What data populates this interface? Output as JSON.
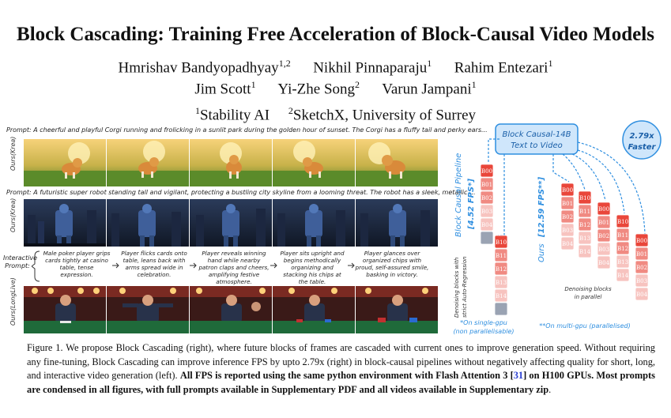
{
  "title": "Block Cascading: Training Free Acceleration of Block-Causal Video Models",
  "authors_line1": [
    {
      "name": "Hmrishav Bandyopadhyay",
      "aff": "1,2"
    },
    {
      "name": "Nikhil Pinnaparaju",
      "aff": "1"
    },
    {
      "name": "Rahim Entezari",
      "aff": "1"
    }
  ],
  "authors_line2": [
    {
      "name": "Jim Scott",
      "aff": "1"
    },
    {
      "name": "Yi-Zhe Song",
      "aff": "2"
    },
    {
      "name": "Varun Jampani",
      "aff": "1"
    }
  ],
  "affiliations": [
    {
      "num": "1",
      "name": "Stability AI"
    },
    {
      "num": "2",
      "name": "SketchX, University of Surrey"
    }
  ],
  "figure": {
    "prompt1": "Prompt: A cheerful and playful Corgi running and frolicking in a sunlit park during the golden hour of sunset. The Corgi has a fluffy tail and perky ears...",
    "row1_label": "Ours(Krea)",
    "prompt2": "Prompt: A futuristic super robot standing tall and vigilant, protecting a bustling city skyline from a looming threat. The robot has a sleek, metallic ...",
    "row2_label": "Ours(Krea)",
    "interactive_label": "Interactive Prompt:",
    "interactive_prompts": [
      "Male poker player grips cards tightly at casino table, tense expression.",
      "Player flicks cards onto table, leans back with arms spread wide in celebration.",
      "Player reveals winning hand while nearby patron claps and cheers, amplifying festive atmosphere.",
      "Player sits upright and begins methodically organizing and stacking his chips at the table.",
      "Player glances over organized chips with proud, self-assured smile, basking in victory."
    ],
    "row3_label": "Ours(LongLive)",
    "model_box": [
      "Block Causal-14B",
      "Text to Video"
    ],
    "speedup": [
      "2.79x",
      "Faster"
    ],
    "pipeline_label": "Block Causal Pipeline",
    "pipeline_fps": "[4.52 FPS*]",
    "pipeline_desc": [
      "Denoising blocks with",
      "strict Auto-Regression"
    ],
    "ours_label": "Ours",
    "ours_fps": "[12.59 FPS**]",
    "ours_desc": [
      "Denoising blocks",
      "in parallel"
    ],
    "note_single": [
      "*On single-gpu",
      "(non parallelisable)"
    ],
    "note_multi": "**On multi-gpu (parallelised)",
    "block_labels": {
      "b0": [
        "B",
        "0",
        "0"
      ],
      "b1": [
        "B",
        "1",
        "0"
      ],
      "b2": [
        "B",
        "2",
        "0"
      ],
      "b3": [
        "B",
        "3",
        "0"
      ],
      "b4": [
        "B",
        "4",
        "0"
      ],
      "c0": [
        "B",
        "0",
        "1"
      ],
      "c1": [
        "B",
        "1",
        "1"
      ],
      "c2": [
        "B",
        "2",
        "1"
      ],
      "c3": [
        "B",
        "3",
        "1"
      ],
      "c4": [
        "B",
        "4",
        "1"
      ]
    },
    "colors": {
      "block_dark": "#e9463a",
      "block_mid": "#f08a82",
      "block_light": "#f7c3bf",
      "block_gray": "#9aa3b3",
      "accent_blue": "#2f8fe0",
      "box_fill": "#cfe6fb"
    }
  },
  "caption": {
    "lead": "Figure 1.",
    "normal": " We propose Block Cascading (right), where future blocks of frames are cascaded with current ones to improve generation speed. Without requiring any fine-tuning, Block Cascading can improve inference FPS by upto 2.79x (right) in block-causal pipelines without negatively affecting quality for short, long, and interactive video generation (left). ",
    "bold_a": "All FPS is reported using the same python environment with Flash Attention 3 [",
    "ref": "31",
    "bold_b": "] on H100 GPUs. Most prompts are condensed in all figures, with full prompts available in Supplementary PDF and all videos available in Supplementary zip",
    "end": "."
  }
}
